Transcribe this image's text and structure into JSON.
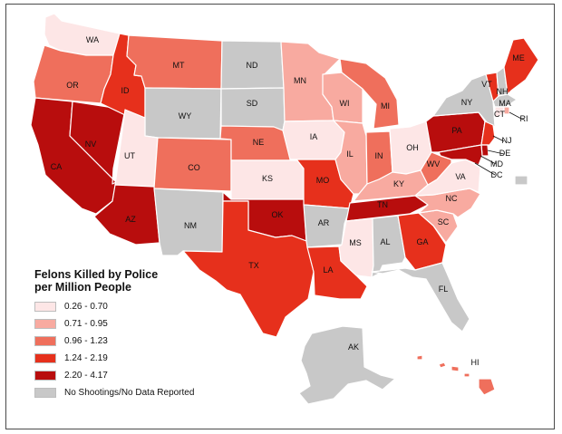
{
  "legend": {
    "title_line1": "Felons Killed by Police",
    "title_line2": "per Million People",
    "classes": [
      {
        "label": "0.26 - 0.70",
        "color": "#fde6e6"
      },
      {
        "label": "0.71 - 0.95",
        "color": "#f8aaa0"
      },
      {
        "label": "0.96 - 1.23",
        "color": "#ef6f5c"
      },
      {
        "label": "1.24 - 2.19",
        "color": "#e6301c"
      },
      {
        "label": "2.20 - 4.17",
        "color": "#b80d0d"
      },
      {
        "label": "No Shootings/No Data Reported",
        "color": "#c8c8c8"
      }
    ]
  },
  "states": {
    "WA": {
      "label": "WA",
      "class": 0
    },
    "OR": {
      "label": "OR",
      "class": 2
    },
    "CA": {
      "label": "CA",
      "class": 4
    },
    "NV": {
      "label": "NV",
      "class": 4
    },
    "ID": {
      "label": "ID",
      "class": 3
    },
    "MT": {
      "label": "MT",
      "class": 2
    },
    "WY": {
      "label": "WY",
      "class": 5
    },
    "UT": {
      "label": "UT",
      "class": 0
    },
    "AZ": {
      "label": "AZ",
      "class": 4
    },
    "CO": {
      "label": "CO",
      "class": 2
    },
    "NM": {
      "label": "NM",
      "class": 5
    },
    "ND": {
      "label": "ND",
      "class": 5
    },
    "SD": {
      "label": "SD",
      "class": 5
    },
    "NE": {
      "label": "NE",
      "class": 2
    },
    "KS": {
      "label": "KS",
      "class": 0
    },
    "OK": {
      "label": "OK",
      "class": 4
    },
    "TX": {
      "label": "TX",
      "class": 3
    },
    "MN": {
      "label": "MN",
      "class": 1
    },
    "IA": {
      "label": "IA",
      "class": 0
    },
    "MO": {
      "label": "MO",
      "class": 3
    },
    "AR": {
      "label": "AR",
      "class": 5
    },
    "LA": {
      "label": "LA",
      "class": 3
    },
    "WI": {
      "label": "WI",
      "class": 1
    },
    "IL": {
      "label": "IL",
      "class": 1
    },
    "MI": {
      "label": "MI",
      "class": 2
    },
    "IN": {
      "label": "IN",
      "class": 2
    },
    "OH": {
      "label": "OH",
      "class": 0
    },
    "KY": {
      "label": "KY",
      "class": 1
    },
    "TN": {
      "label": "TN",
      "class": 4
    },
    "MS": {
      "label": "MS",
      "class": 0
    },
    "AL": {
      "label": "AL",
      "class": 5
    },
    "GA": {
      "label": "GA",
      "class": 3
    },
    "FL": {
      "label": "FL",
      "class": 5
    },
    "SC": {
      "label": "SC",
      "class": 1
    },
    "NC": {
      "label": "NC",
      "class": 1
    },
    "VA": {
      "label": "VA",
      "class": 0
    },
    "WV": {
      "label": "WV",
      "class": 2
    },
    "PA": {
      "label": "PA",
      "class": 4
    },
    "NY": {
      "label": "NY",
      "class": 5
    },
    "VT": {
      "label": "VT",
      "class": 3
    },
    "NH": {
      "label": "NH",
      "class": 5
    },
    "ME": {
      "label": "ME",
      "class": 3
    },
    "MA": {
      "label": "MA",
      "class": 5
    },
    "RI": {
      "label": "RI",
      "class": 1
    },
    "CT": {
      "label": "CT",
      "class": 0
    },
    "NJ": {
      "label": "NJ",
      "class": 3
    },
    "DE": {
      "label": "DE",
      "class": 4
    },
    "MD": {
      "label": "MD",
      "class": 4
    },
    "DC": {
      "label": "DC",
      "class": 5
    },
    "AK": {
      "label": "AK",
      "class": 5
    },
    "HI": {
      "label": "HI",
      "class": 2
    }
  }
}
